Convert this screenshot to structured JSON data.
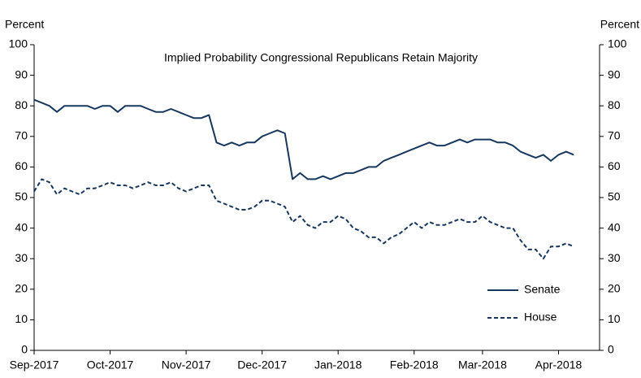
{
  "chart_data": {
    "type": "line",
    "title": "Implied Probability Congressional Republicans Retain Majority",
    "ylabel": "Percent",
    "y2label": "Percent",
    "categories": [
      "Sep-2017",
      null,
      null,
      null,
      null,
      null,
      null,
      null,
      null,
      null,
      "Oct-2017",
      null,
      null,
      null,
      null,
      null,
      null,
      null,
      null,
      null,
      "Nov-2017",
      null,
      null,
      null,
      null,
      null,
      null,
      null,
      null,
      null,
      "Dec-2017",
      null,
      null,
      null,
      null,
      null,
      null,
      null,
      null,
      null,
      "Jan-2018",
      null,
      null,
      null,
      null,
      null,
      null,
      null,
      null,
      null,
      "Feb-2018",
      null,
      null,
      null,
      null,
      null,
      null,
      null,
      null,
      "Mar-2018",
      null,
      null,
      null,
      null,
      null,
      null,
      null,
      null,
      null,
      "Apr-2018",
      null,
      null
    ],
    "series": [
      {
        "name": "Senate",
        "color": "#17375e",
        "linestyle": "solid",
        "values": [
          82,
          81,
          80,
          78,
          80,
          80,
          80,
          80,
          79,
          80,
          80,
          78,
          80,
          80,
          80,
          79,
          78,
          78,
          79,
          78,
          77,
          76,
          76,
          77,
          68,
          67,
          68,
          67,
          68,
          68,
          70,
          71,
          72,
          71,
          56,
          58,
          56,
          56,
          57,
          56,
          57,
          58,
          58,
          59,
          60,
          60,
          62,
          63,
          64,
          65,
          66,
          67,
          68,
          67,
          67,
          68,
          69,
          68,
          69,
          69,
          69,
          68,
          68,
          67,
          65,
          64,
          63,
          64,
          62,
          64,
          65,
          64
        ]
      },
      {
        "name": "House",
        "color": "#17375e",
        "linestyle": "dashed",
        "values": [
          52,
          56,
          55,
          51,
          53,
          52,
          51,
          53,
          53,
          54,
          55,
          54,
          54,
          53,
          54,
          55,
          54,
          54,
          55,
          53,
          52,
          53,
          54,
          54,
          49,
          48,
          47,
          46,
          46,
          47,
          49,
          49,
          48,
          47,
          42,
          44,
          41,
          40,
          42,
          42,
          44,
          43,
          40,
          39,
          37,
          37,
          35,
          37,
          38,
          40,
          42,
          40,
          42,
          41,
          41,
          42,
          43,
          42,
          42,
          44,
          42,
          41,
          40,
          40,
          36,
          33,
          33,
          30,
          34,
          34,
          35,
          34
        ]
      }
    ],
    "ylim": [
      0,
      100
    ],
    "yticks": [
      0,
      10,
      20,
      30,
      40,
      50,
      60,
      70,
      80,
      90,
      100
    ],
    "y2lim": [
      0,
      100
    ],
    "y2ticks": [
      0,
      10,
      20,
      30,
      40,
      50,
      60,
      70,
      80,
      90,
      100
    ],
    "grid": false,
    "legend": "lower right"
  }
}
